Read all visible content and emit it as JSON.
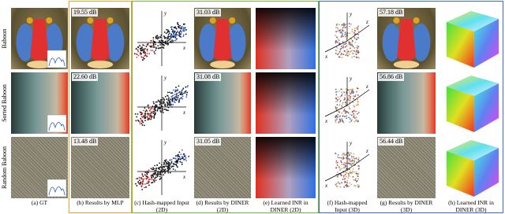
{
  "row_labels": [
    "Baboon",
    "Sorted Baboon",
    "Random Baboon"
  ],
  "psnr": {
    "mlp": [
      "19.55 dB",
      "22.60 dB",
      "13.48 dB"
    ],
    "diner_2d": [
      "31.03 dB",
      "31.08 dB",
      "31.05 dB"
    ],
    "diner_3d": [
      "57.18 dB",
      "56.86 dB",
      "56.44 dB"
    ]
  },
  "captions": [
    "(a) GT",
    "(b) Results by MLP",
    "(c) Hash-mapped Input (2D)",
    "(d) Results by DINER (2D)",
    "(e) Learned INR in DINER (2D)",
    "(f) Hash-mapped Input (3D)",
    "(g) Results by DINER (3D)",
    "(h) Learned INR in DINER (3D)"
  ],
  "axis_labels": {
    "x": "x",
    "y": "y",
    "z": "z"
  }
}
